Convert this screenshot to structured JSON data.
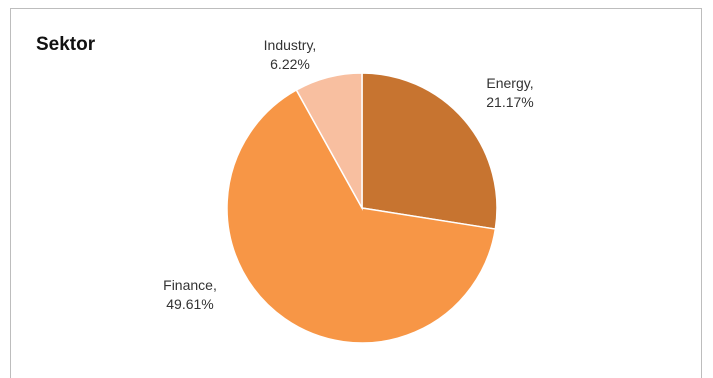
{
  "chart_data": {
    "type": "pie",
    "title": "Sektor",
    "slices": [
      {
        "name": "Energy",
        "label": "Energy,",
        "pct_label": "21.17%",
        "value": 21.17,
        "color": "#c77430"
      },
      {
        "name": "Finance",
        "label": "Finance,",
        "pct_label": "49.61%",
        "value": 49.61,
        "color": "#f79646"
      },
      {
        "name": "Industry",
        "label": "Industry,",
        "pct_label": "6.22%",
        "value": 6.22,
        "color": "#f8bfa0"
      }
    ],
    "legend": "none"
  }
}
